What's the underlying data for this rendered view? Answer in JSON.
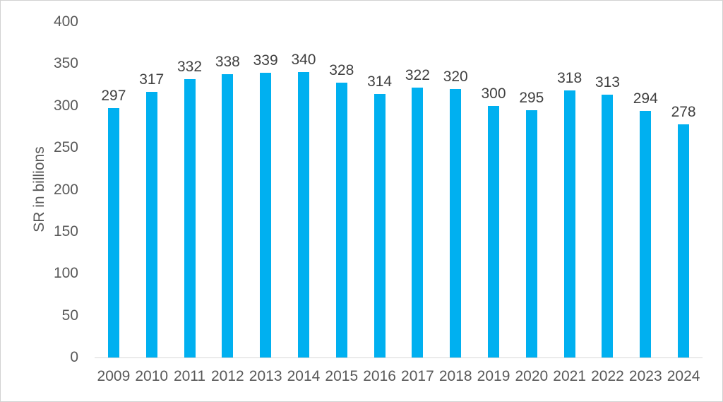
{
  "chart_data": {
    "type": "bar",
    "title": "",
    "categories": [
      "2009",
      "2010",
      "2011",
      "2012",
      "2013",
      "2014",
      "2015",
      "2016",
      "2017",
      "2018",
      "2019",
      "2020",
      "2021",
      "2022",
      "2023",
      "2024"
    ],
    "values": [
      297,
      317,
      332,
      338,
      339,
      340,
      328,
      314,
      322,
      320,
      300,
      295,
      318,
      313,
      294,
      278
    ],
    "xlabel": "",
    "ylabel": "SR in billions",
    "ylim": [
      0,
      400
    ],
    "yticks": [
      400,
      350,
      300,
      250,
      200,
      150,
      100,
      50,
      0
    ],
    "grid": false,
    "legend": false,
    "data_labels": true,
    "colors": {
      "bar": "#00b0f0",
      "data_label_text": "#404040",
      "axis_tick_text": "#595959",
      "axis_line": "#d9d9d9",
      "chart_border": "#d2d2d2",
      "background": "#ffffff"
    }
  }
}
